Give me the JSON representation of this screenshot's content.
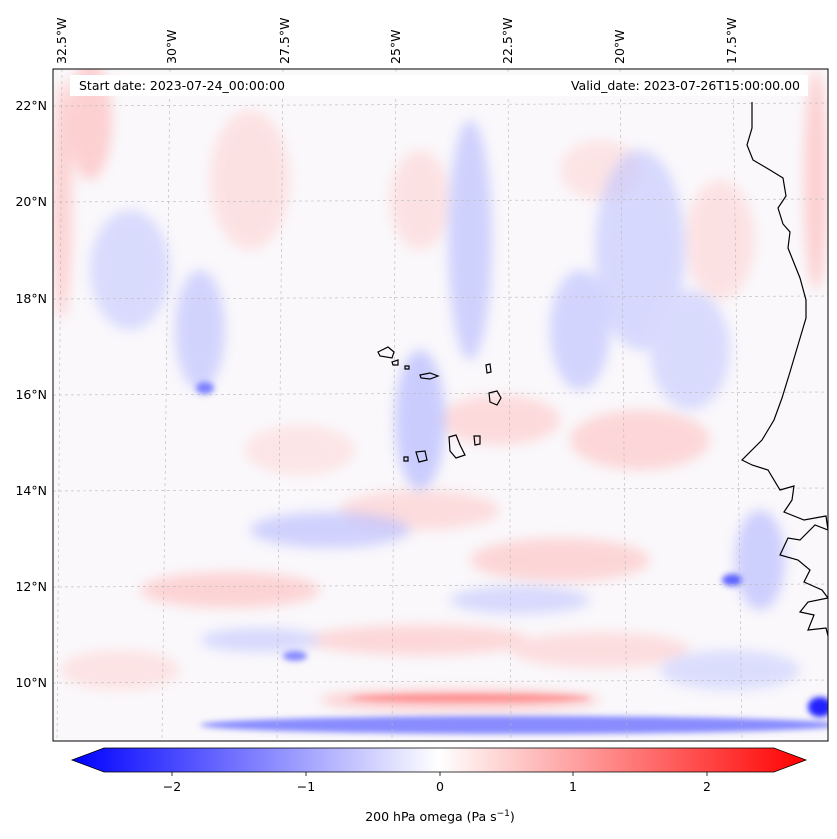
{
  "map": {
    "start_label": "Start date: 2023-07-24_00:00:00",
    "valid_label": "Valid_date: 2023-07-26T15:00:00.00",
    "lon_labels": [
      "32.5°W",
      "30°W",
      "27.5°W",
      "25°W",
      "22.5°W",
      "20°W",
      "17.5°W"
    ],
    "lat_labels": [
      "22°N",
      "20°N",
      "18°N",
      "16°N",
      "14°N",
      "12°N",
      "10°N"
    ],
    "colors": {
      "negative": "#0000ff",
      "zero": "#ffffff",
      "positive": "#ff0000",
      "coast": "#000000",
      "grid": "#b0b0b0"
    }
  },
  "colorbar": {
    "ticks": [
      "−2",
      "−1",
      "0",
      "1",
      "2"
    ],
    "range": [
      -2.75,
      2.75
    ],
    "label": "200 hPa omega (Pa s",
    "label_sup": "−1",
    "label_end": ")"
  }
}
